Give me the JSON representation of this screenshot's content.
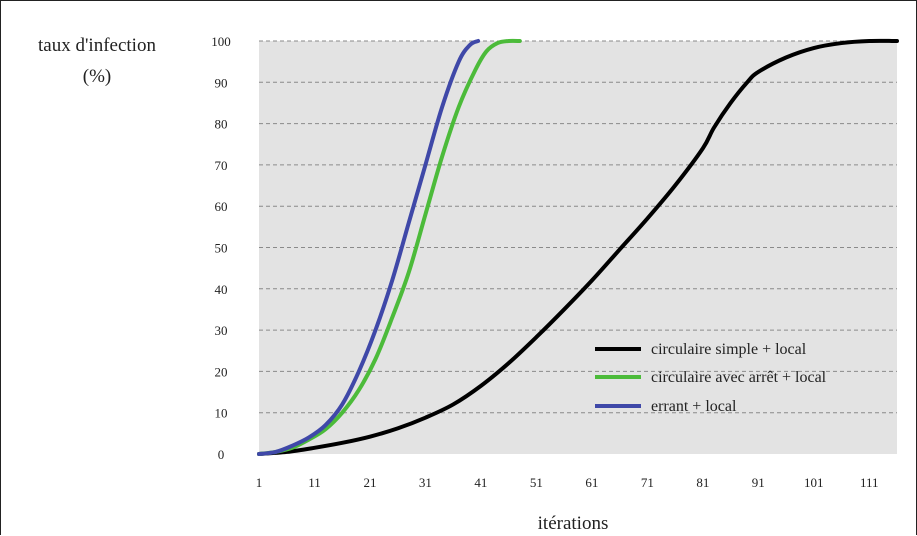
{
  "chart_data": {
    "type": "line",
    "ylabel_line1": "taux d'infection",
    "ylabel_line2": "(%)",
    "xlabel": "itérations",
    "xlim": [
      1,
      116
    ],
    "ylim": [
      0,
      100
    ],
    "x_ticks": [
      1,
      11,
      21,
      31,
      41,
      51,
      61,
      71,
      81,
      91,
      101,
      111
    ],
    "y_ticks": [
      0,
      10,
      20,
      30,
      40,
      50,
      60,
      70,
      80,
      90,
      100
    ],
    "grid": "horizontal dashed",
    "legend_position": "bottom-right",
    "series": [
      {
        "name": "circulaire simple + local",
        "color": "#000000",
        "points": [
          [
            1,
            0
          ],
          [
            6,
            0.5
          ],
          [
            11,
            1.5
          ],
          [
            16,
            2.7
          ],
          [
            21,
            4.2
          ],
          [
            26,
            6.2
          ],
          [
            31,
            8.8
          ],
          [
            36,
            12
          ],
          [
            41,
            16.5
          ],
          [
            46,
            22
          ],
          [
            51,
            28.3
          ],
          [
            56,
            35
          ],
          [
            61,
            42
          ],
          [
            66,
            49.5
          ],
          [
            71,
            57
          ],
          [
            76,
            65
          ],
          [
            81,
            74
          ],
          [
            83,
            79
          ],
          [
            86,
            85
          ],
          [
            89,
            90
          ],
          [
            91,
            92.5
          ],
          [
            96,
            96
          ],
          [
            101,
            98.3
          ],
          [
            106,
            99.5
          ],
          [
            111,
            100
          ],
          [
            116,
            100
          ]
        ]
      },
      {
        "name": "circulaire avec arrêt + local",
        "color": "#4cbb3a",
        "points": [
          [
            1,
            0
          ],
          [
            4,
            0.5
          ],
          [
            7,
            1.5
          ],
          [
            10,
            3.5
          ],
          [
            13,
            6
          ],
          [
            16,
            10
          ],
          [
            19,
            15.5
          ],
          [
            22,
            23
          ],
          [
            25,
            33
          ],
          [
            28,
            44
          ],
          [
            31,
            58
          ],
          [
            34,
            72
          ],
          [
            37,
            84
          ],
          [
            40,
            93
          ],
          [
            42,
            97.5
          ],
          [
            44,
            99.5
          ],
          [
            46,
            100
          ],
          [
            48,
            100
          ]
        ]
      },
      {
        "name": "errant + local",
        "color": "#3f48a8",
        "points": [
          [
            1,
            0
          ],
          [
            4,
            0.5
          ],
          [
            7,
            2
          ],
          [
            10,
            4
          ],
          [
            13,
            7
          ],
          [
            16,
            12
          ],
          [
            19,
            20
          ],
          [
            22,
            30
          ],
          [
            25,
            42
          ],
          [
            28,
            56
          ],
          [
            31,
            70
          ],
          [
            34,
            84
          ],
          [
            37,
            95
          ],
          [
            39,
            99
          ],
          [
            40.5,
            100
          ]
        ]
      }
    ]
  }
}
